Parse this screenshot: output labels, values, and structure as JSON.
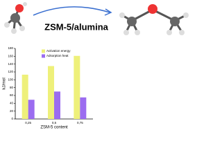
{
  "header": {
    "catalyst": "ZSM-5/alumina"
  },
  "chart_data": {
    "type": "bar",
    "ylabel": "kJ/mol",
    "xlabel": "ZSM-5 content",
    "categories": [
      "0,25",
      "0,5",
      "0,75"
    ],
    "series": [
      {
        "name": "Activation energy",
        "color": "#eef07a",
        "values": [
          113,
          135,
          161
        ]
      },
      {
        "name": "Adsorption heat",
        "color": "#9b6cf0",
        "values": [
          49,
          70,
          55
        ]
      }
    ],
    "ylim": [
      0,
      180
    ],
    "yticks": [
      0,
      20,
      40,
      60,
      80,
      100,
      120,
      140,
      160,
      180
    ],
    "legend": "upper-left"
  }
}
